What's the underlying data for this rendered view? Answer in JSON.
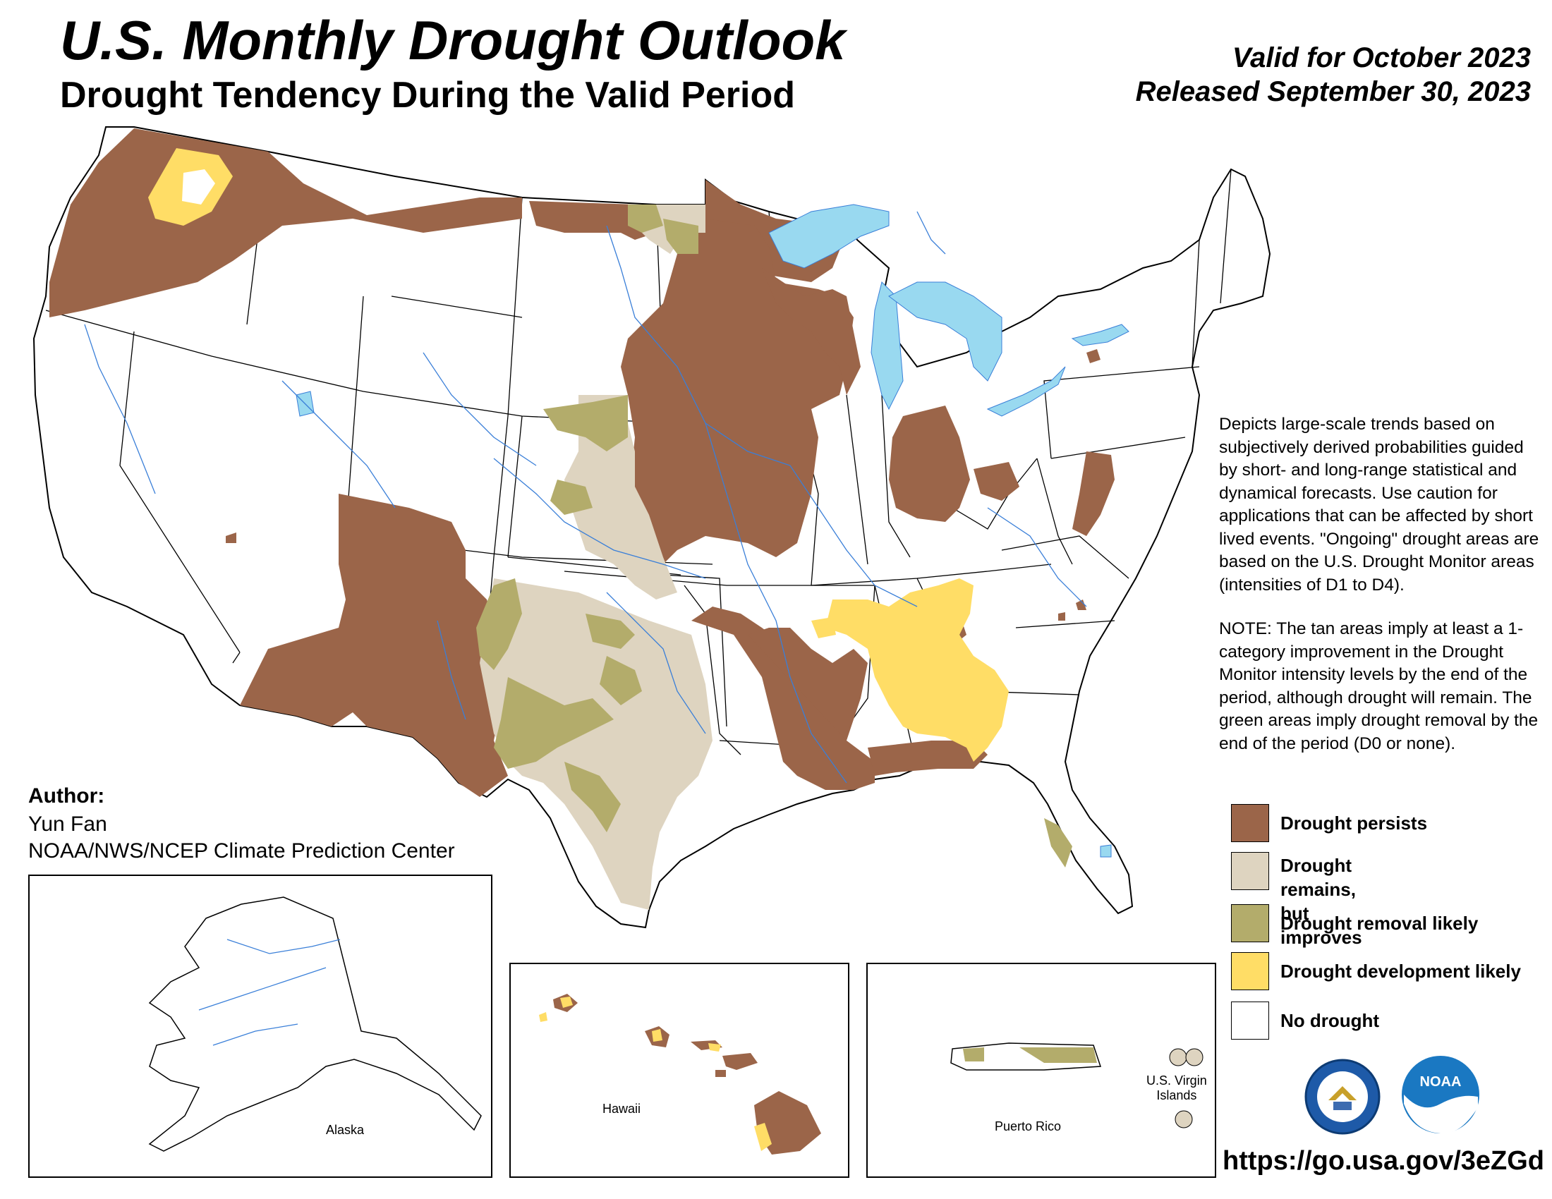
{
  "title": "U.S. Monthly Drought Outlook",
  "subtitle": "Drought Tendency During the Valid Period",
  "valid": "Valid for October 2023",
  "released": "Released September 30, 2023",
  "description": [
    "Depicts large-scale trends based on subjectively derived probabilities guided by short- and long-range statistical and dynamical forecasts. Use caution for applications that can be affected by short lived events. \"Ongoing\" drought areas are based on the U.S. Drought Monitor areas (intensities of D1 to D4).",
    "NOTE: The tan areas imply at least a 1-category improvement in the Drought Monitor intensity levels by the end of the period, although drought will remain. The green areas imply drought removal by the end of the period (D0 or none)."
  ],
  "legend": [
    {
      "label": "Drought persists",
      "color": "#9b6549"
    },
    {
      "label": "Drought remains,\nbut improves",
      "color": "#ded4c0"
    },
    {
      "label": "Drought removal likely",
      "color": "#b3ac6b"
    },
    {
      "label": "Drought development likely",
      "color": "#ffdd66"
    },
    {
      "label": "No drought",
      "color": "#ffffff"
    }
  ],
  "author": {
    "label": "Author:",
    "name": "Yun Fan",
    "org": "NOAA/NWS/NCEP Climate Prediction Center"
  },
  "insets": {
    "alaska": "Alaska",
    "hawaii": "Hawaii",
    "puerto_rico": "Puerto Rico",
    "usvi": "U.S. Virgin\nIslands"
  },
  "url": "https://go.usa.gov/3eZGd",
  "logos": {
    "commerce": "department-of-commerce-seal",
    "noaa": "NOAA"
  },
  "colors": {
    "persists": "#9b6549",
    "improves": "#ded4c0",
    "removal": "#b3ac6b",
    "development": "#ffdd66",
    "water": "#99d9f0",
    "river": "#3a7fd8"
  }
}
